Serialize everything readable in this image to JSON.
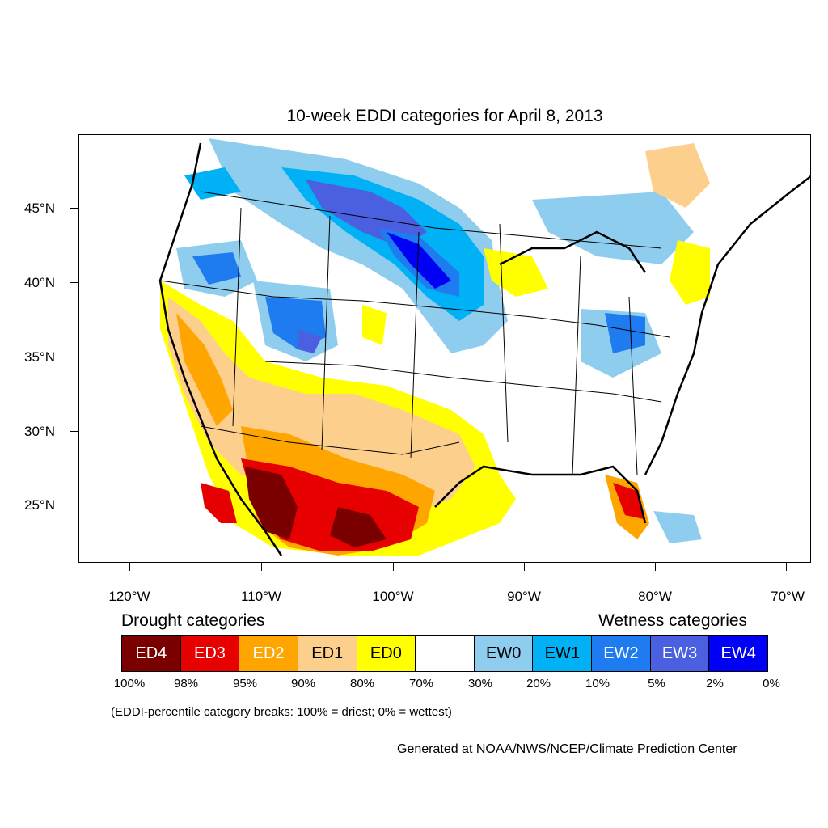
{
  "title": "10-week EDDI categories for April 8, 2013",
  "lat_labels": [
    "45°N",
    "40°N",
    "35°N",
    "30°N",
    "25°N"
  ],
  "lon_labels": [
    "120°W",
    "110°W",
    "100°W",
    "90°W",
    "80°W",
    "70°W"
  ],
  "legend": {
    "drought_heading": "Drought categories",
    "wetness_heading": "Wetness categories",
    "categories": [
      {
        "label": "ED4",
        "color": "#7a0000",
        "text_color": "#ffffff"
      },
      {
        "label": "ED3",
        "color": "#e60000",
        "text_color": "#ffffff"
      },
      {
        "label": "ED2",
        "color": "#ffa500",
        "text_color": "#ffffff"
      },
      {
        "label": "ED1",
        "color": "#fcd08c",
        "text_color": "#000000"
      },
      {
        "label": "ED0",
        "color": "#ffff00",
        "text_color": "#000000"
      },
      {
        "label": "",
        "color": "#ffffff",
        "text_color": "#000000"
      },
      {
        "label": "EW0",
        "color": "#8fcdee",
        "text_color": "#000000"
      },
      {
        "label": "EW1",
        "color": "#00b2f5",
        "text_color": "#000000"
      },
      {
        "label": "EW2",
        "color": "#1e7cf0",
        "text_color": "#ffffff"
      },
      {
        "label": "EW3",
        "color": "#4a60e0",
        "text_color": "#ffffff"
      },
      {
        "label": "EW4",
        "color": "#0000f5",
        "text_color": "#ffffff"
      }
    ],
    "breaks": [
      "100%",
      "98%",
      "95%",
      "90%",
      "80%",
      "70%",
      "30%",
      "20%",
      "10%",
      "5%",
      "2%",
      "0%"
    ]
  },
  "note": "(EDDI-percentile category breaks: 100% = driest; 0% = wettest)",
  "credit": "Generated at NOAA/NWS/NCEP/Climate Prediction Center"
}
